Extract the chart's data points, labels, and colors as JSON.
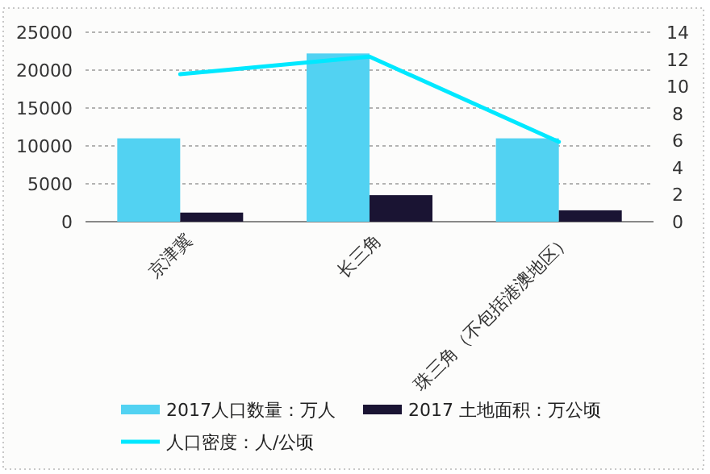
{
  "chart_data": {
    "type": "bar",
    "categories": [
      "京津冀",
      "长三角",
      "珠三角（不包括港澳地区）"
    ],
    "series": [
      {
        "name": "2017人口数量：万人",
        "color": "#52d2f2",
        "values": [
          11000,
          22200,
          11000
        ]
      },
      {
        "name": "2017 土地面积：万公顷",
        "color": "#1a1433",
        "values": [
          1200,
          3500,
          1500
        ]
      },
      {
        "name": "人口密度：人/公顷",
        "type": "line",
        "axis": "y2",
        "color": "#00e8ff",
        "values": [
          10.9,
          12.2,
          5.9
        ]
      }
    ],
    "ylim": [
      0,
      25000
    ],
    "yticks": [
      0,
      5000,
      10000,
      15000,
      20000,
      25000
    ],
    "y2lim": [
      0,
      14
    ],
    "y2ticks": [
      0,
      2,
      4,
      6,
      8,
      10,
      12,
      14
    ],
    "grid": "y",
    "legend": "bottom",
    "line_style": "solid"
  }
}
